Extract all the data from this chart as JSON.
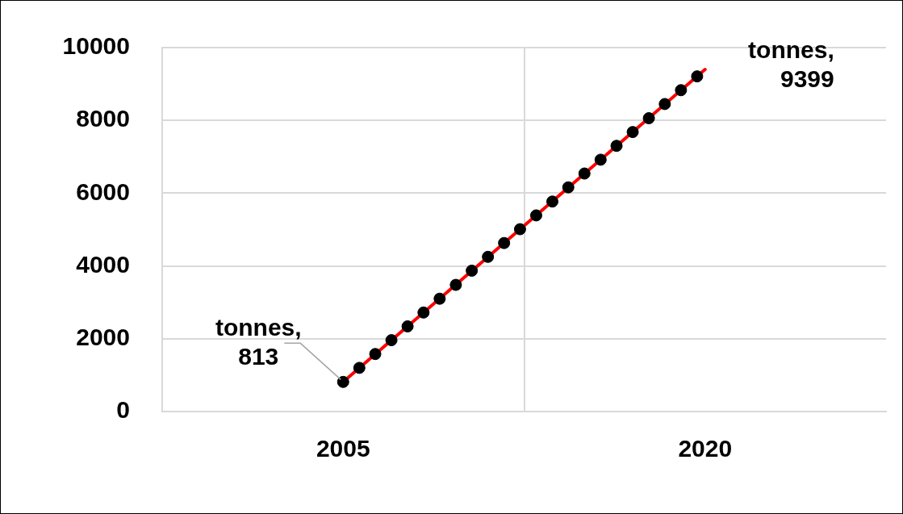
{
  "chart_data": {
    "type": "line",
    "xlim": [
      1997.5,
      2027.5
    ],
    "xticks": [
      2005,
      {
        "value": 2012.5,
        "label": null
      },
      2020
    ],
    "ylim": [
      0,
      10000
    ],
    "yticks": [
      0,
      2000,
      4000,
      6000,
      8000,
      10000
    ],
    "grid": true,
    "legend": false,
    "series": [
      {
        "type": "line",
        "color": "#ff0000",
        "marker": "none",
        "x": [
          2005,
          2020
        ],
        "values": [
          813,
          9399
        ]
      },
      {
        "type": "scatter",
        "color": "#000000",
        "marker": "circle",
        "x": [
          2005,
          2005.67,
          2006.33,
          2007,
          2007.67,
          2008.33,
          2009,
          2009.67,
          2010.33,
          2011,
          2011.67,
          2012.33,
          2013,
          2013.67,
          2014.33,
          2015,
          2015.67,
          2016.33,
          2017,
          2017.67,
          2018.33,
          2019,
          2019.67
        ],
        "values": [
          813,
          1200,
          1580,
          1960,
          2340,
          2720,
          3100,
          3480,
          3870,
          4250,
          4630,
          5010,
          5390,
          5770,
          6160,
          6540,
          6920,
          7300,
          7680,
          8060,
          8450,
          8830,
          9210
        ]
      }
    ],
    "annotations": [
      {
        "text": "tonnes, 813",
        "x": 2005,
        "y": 813
      },
      {
        "text": "tonnes, 9399",
        "x": 2020,
        "y": 9399
      }
    ]
  }
}
